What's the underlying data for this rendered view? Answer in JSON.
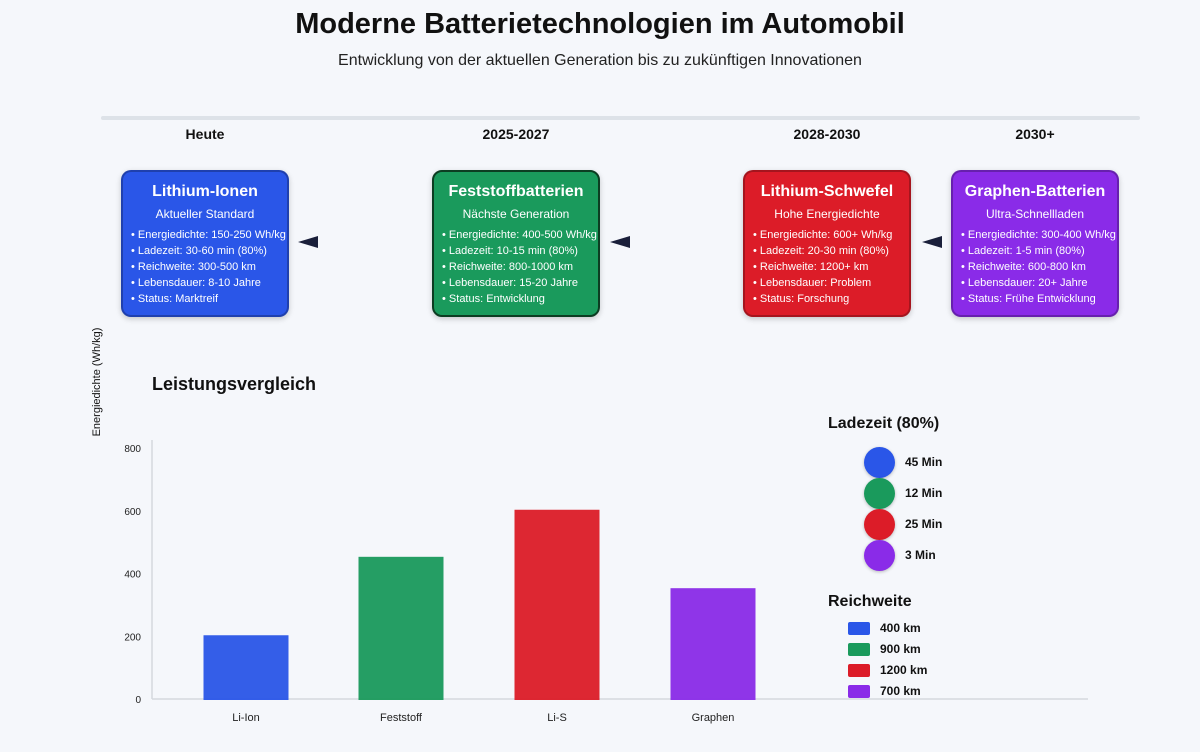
{
  "header": {
    "title": "Moderne Batterietechnologien im Automobil",
    "subtitle": "Entwicklung von der aktuellen Generation bis zu zukünftigen Innovationen"
  },
  "timeline": {
    "eras": [
      "Heute",
      "2025-2027",
      "2028-2030",
      "2030+"
    ]
  },
  "cards": [
    {
      "title": "Lithium-Ionen",
      "subtitle": "Aktueller Standard",
      "color": "#2a56e8",
      "items": [
        "Energiedichte: 150-250 Wh/kg",
        "Ladezeit: 30-60 min (80%)",
        "Reichweite: 300-500 km",
        "Lebensdauer: 8-10 Jahre",
        "Status: Marktreif"
      ]
    },
    {
      "title": "Feststoffbatterien",
      "subtitle": "Nächste Generation",
      "color": "#1a9a5c",
      "items": [
        "Energiedichte: 400-500 Wh/kg",
        "Ladezeit: 10-15 min (80%)",
        "Reichweite: 800-1000 km",
        "Lebensdauer: 15-20 Jahre",
        "Status: Entwicklung"
      ]
    },
    {
      "title": "Lithium-Schwefel",
      "subtitle": "Hohe Energiedichte",
      "color": "#dc1c28",
      "items": [
        "Energiedichte: 600+ Wh/kg",
        "Ladezeit: 20-30 min (80%)",
        "Reichweite: 1200+ km",
        "Lebensdauer: Problem",
        "Status: Forschung"
      ]
    },
    {
      "title": "Graphen-Batterien",
      "subtitle": "Ultra-Schnellladen",
      "color": "#8a2be8",
      "items": [
        "Energiedichte: 300-400 Wh/kg",
        "Ladezeit: 1-5 min (80%)",
        "Reichweite: 600-800 km",
        "Lebensdauer: 20+ Jahre",
        "Status: Frühe Entwicklung"
      ]
    }
  ],
  "chart_data": {
    "type": "bar",
    "title": "Leistungsvergleich",
    "ylabel": "Energiedichte (Wh/kg)",
    "xlabel": "",
    "categories": [
      "Li-Ion",
      "Feststoff",
      "Li-S",
      "Graphen"
    ],
    "values": [
      200,
      450,
      600,
      350
    ],
    "colors": [
      "#2a56e8",
      "#1a9a5c",
      "#dc1c28",
      "#8a2be8"
    ],
    "ylim": [
      0,
      800
    ],
    "yticks": [
      0,
      200,
      400,
      600,
      800
    ],
    "legends": {
      "charge": {
        "title": "Ladezeit (80%)",
        "labels": [
          "45 Min",
          "12 Min",
          "25 Min",
          "3 Min"
        ]
      },
      "range": {
        "title": "Reichweite",
        "labels": [
          "400 km",
          "900 km",
          "1200 km",
          "700 km"
        ]
      }
    }
  }
}
